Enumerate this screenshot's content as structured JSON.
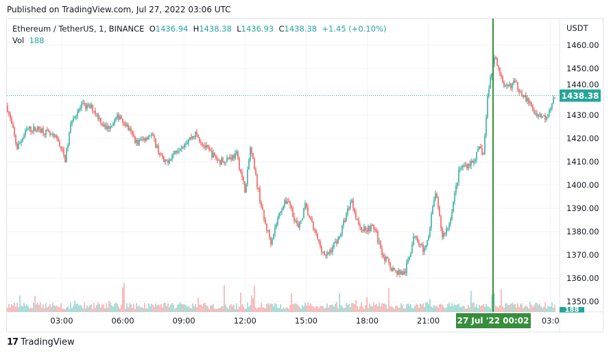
{
  "published": "Published on TradingView.com, Jul 27, 2022 03:06 UTC",
  "legend": {
    "symbol": "Ethereum / TetherUS, 1, BINANCE",
    "open_label": "O",
    "open": "1436.94",
    "high_label": "H",
    "high": "1438.38",
    "low_label": "L",
    "low": "1436.93",
    "close_label": "C",
    "close": "1438.38",
    "change": "+1.45 (+0.10%)",
    "vol_label": "Vol",
    "vol": "188"
  },
  "price_axis": {
    "currency": "USDT",
    "ticks": [
      "1460.00",
      "1450.00",
      "1440.00",
      "1430.00",
      "1420.00",
      "1410.00",
      "1400.00",
      "1390.00",
      "1380.00",
      "1370.00",
      "1360.00",
      "1350.00"
    ],
    "last_price": "1438.38",
    "last_volume": "188"
  },
  "time_axis": {
    "ticks": [
      "03:00",
      "06:00",
      "09:00",
      "12:00",
      "15:00",
      "18:00",
      "21:00",
      "03:0"
    ],
    "crosshair_label": "27 Jul '22   00:02"
  },
  "colors": {
    "up": "#26a69a",
    "down": "#ef5350",
    "crosshair": "#388e3c",
    "accent": "#26a69a"
  },
  "chart_data": {
    "type": "candlestick",
    "title": "Ethereum / TetherUS, 1, BINANCE",
    "ylabel": "USDT",
    "ylim": [
      1345,
      1465
    ],
    "x_unit": "hours since Jul 26 00:00",
    "path": [
      [
        0.31,
        1434
      ],
      [
        0.81,
        1416
      ],
      [
        1.32,
        1424
      ],
      [
        1.99,
        1424
      ],
      [
        2.83,
        1419
      ],
      [
        3.17,
        1411
      ],
      [
        3.51,
        1429
      ],
      [
        4.01,
        1434
      ],
      [
        4.52,
        1433
      ],
      [
        5.19,
        1424
      ],
      [
        5.86,
        1430
      ],
      [
        6.7,
        1418
      ],
      [
        7.38,
        1422
      ],
      [
        8.05,
        1409
      ],
      [
        8.72,
        1416
      ],
      [
        9.57,
        1422
      ],
      [
        10.07,
        1416
      ],
      [
        10.74,
        1410
      ],
      [
        11.59,
        1413
      ],
      [
        12.02,
        1397
      ],
      [
        12.26,
        1416
      ],
      [
        12.6,
        1400
      ],
      [
        12.93,
        1385
      ],
      [
        13.27,
        1376
      ],
      [
        13.77,
        1390
      ],
      [
        14.11,
        1394
      ],
      [
        14.62,
        1381
      ],
      [
        14.95,
        1391
      ],
      [
        15.63,
        1375
      ],
      [
        15.96,
        1369
      ],
      [
        16.64,
        1378
      ],
      [
        17.21,
        1394
      ],
      [
        17.65,
        1381
      ],
      [
        18.32,
        1382
      ],
      [
        18.82,
        1369
      ],
      [
        19.33,
        1363
      ],
      [
        19.84,
        1362
      ],
      [
        20.34,
        1379
      ],
      [
        20.85,
        1371
      ],
      [
        21.35,
        1397
      ],
      [
        21.69,
        1378
      ],
      [
        22.02,
        1383
      ],
      [
        22.53,
        1407
      ],
      [
        23.2,
        1410
      ],
      [
        23.54,
        1416
      ],
      [
        23.71,
        1413
      ],
      [
        23.94,
        1441
      ],
      [
        24.28,
        1456
      ],
      [
        24.72,
        1441
      ],
      [
        25.22,
        1444
      ],
      [
        25.73,
        1438
      ],
      [
        26.23,
        1431
      ],
      [
        26.74,
        1429
      ],
      [
        27.24,
        1438.38
      ]
    ],
    "crosshair_time": "27 Jul '22 00:02"
  }
}
